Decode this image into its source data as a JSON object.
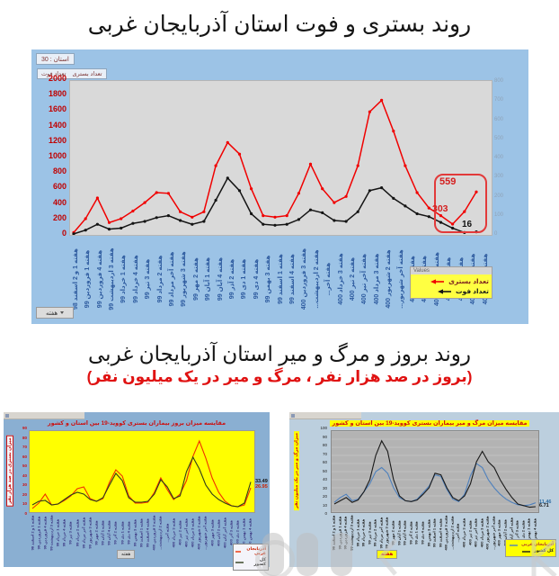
{
  "page": {
    "title_top": "روند بستری و فوت استان آذربایجان غربی",
    "title_bottom": "روند بروز و مرگ و میر استان آذربایجان غربی",
    "subtitle_bottom": "(بروز در صد هزار نفر ، مرگ و میر در یک میلیون نفر)"
  },
  "top_chart": {
    "controls": {
      "province": "استان : 30",
      "series_button_1": "تعداد بستری",
      "series_button_2": "تعداد فوت",
      "week": "هفته"
    },
    "legend_header": "Values",
    "annotations": {
      "latest_hospitalized": "559",
      "previous_hospitalized": "303",
      "latest_deaths": "16"
    }
  },
  "chart_data": [
    {
      "type": "line",
      "title": "روند بستری و فوت استان آذربایجان غربی",
      "legend_position": "bottom-right",
      "grid": false,
      "categories": [
        "هفته 1 و 2 اسفند 98",
        "هفته 1 فروردین 99",
        "هفته 4 فروردین 99",
        "هفته 3 اردیبهشت 99",
        "هفته 1 خرداد 99",
        "هفته 4 خرداد 99",
        "هفته 3 تیر 99",
        "هفته 2 مرداد 99",
        "هفته آخر مرداد 99",
        "هفته 3 شهریور 99",
        "هفته 2 مهر 99",
        "هفته 1 آبان 99",
        "هفته 4 آبان 99",
        "هفته 2 آذر 99",
        "هفته 1 دی 99",
        "هفته 4 دی 99",
        "هفته 3 بهمن 99",
        "هفته 1 اسفند 99",
        "هفته 4 اسفند 99",
        "هفته 3 فروردین 400",
        "هفته 2 اردیبهشت...",
        "هفته آخر...",
        "هفته 3 خرداد 400",
        "هفته 2 تیر 400",
        "هفته آخر تیر 400",
        "هفته 3 مرداد 400",
        "هفته 2 شهریور 400",
        "هفته آخر شهریور...",
        "هفته 3 مهر 400",
        "هفته 2 آبان 400",
        "هفته آخر آبان 400",
        "هفته 3 آذر 400",
        "هفته 2 دی 400",
        "هفته 1 بهمن 400",
        "هفته 4 بهمن 400"
      ],
      "y_left": {
        "min": 0,
        "max": 2000,
        "ticks": [
          2000,
          1800,
          1600,
          1400,
          1200,
          1000,
          800,
          600,
          400,
          200,
          0
        ]
      },
      "y_right": {
        "min": 0,
        "max": 800,
        "ticks": [
          800,
          700,
          600,
          500,
          400,
          300,
          200,
          100,
          0
        ]
      },
      "series": [
        {
          "name": "تعداد بستری",
          "axis": "left",
          "color": "#f00000",
          "values": [
            30,
            210,
            480,
            160,
            210,
            310,
            420,
            550,
            540,
            300,
            230,
            300,
            900,
            1200,
            1050,
            600,
            250,
            230,
            250,
            540,
            920,
            600,
            420,
            500,
            900,
            1600,
            1750,
            1350,
            900,
            550,
            350,
            250,
            140,
            303,
            559
          ]
        },
        {
          "name": "تعداد فوت",
          "axis": "right",
          "color": "#141414",
          "values": [
            5,
            25,
            55,
            30,
            35,
            60,
            70,
            90,
            100,
            75,
            55,
            70,
            180,
            295,
            230,
            110,
            55,
            50,
            55,
            80,
            130,
            115,
            75,
            70,
            120,
            230,
            245,
            190,
            150,
            110,
            95,
            65,
            35,
            12,
            16
          ]
        }
      ]
    },
    {
      "type": "line",
      "title": "مقایسه میزان بروز بیماران بستری کووید-19 بین استان و کشور",
      "ylabel": "میزان بستری در صد هزار نفر",
      "xlabel": "هفته",
      "grid": false,
      "categories": [
        "هفته 1 و 2 اسفند 98",
        "هفته 1 فروردین 99",
        "هفته 4 فروردین 99",
        "هفته 3 اردیبهشت 99",
        "هفته 1 خرداد 99",
        "هفته 4 خرداد 99",
        "هفته 3 تیر 99",
        "هفته 2 مرداد 99",
        "هفته آخر مرداد 99",
        "هفته 3 شهریور 99",
        "هفته 2 مهر 99",
        "هفته 1 آبان 99",
        "هفته 4 آبان 99",
        "هفته 2 آذر 99",
        "هفته 1 دی 99",
        "هفته 4 دی 99",
        "هفته 3 بهمن 99",
        "هفته 1 اسفند 99",
        "هفته 4 اسفند 99",
        "هفته 3 فروردین 400",
        "هفته 2 اردیبهشت...",
        "هفته آخر...",
        "هفته 3 خرداد 400",
        "هفته 2 تیر 400",
        "هفته آخر تیر 400",
        "هفته 3 مرداد 400",
        "هفته 2 شهریور 400",
        "هفته آخر شهریور...",
        "هفته 3 مهر 400",
        "هفته 2 آبان 400",
        "هفته آخر آبان 400",
        "هفته 3 آذر 400",
        "هفته 2 دی 400",
        "هفته 1 بهمن 400",
        "هفته 4 بهمن 400"
      ],
      "y": {
        "min": 0,
        "max": 90,
        "ticks": [
          90,
          80,
          70,
          60,
          50,
          40,
          30,
          20,
          10,
          0
        ]
      },
      "series": [
        {
          "name": "آذربایجان غربی",
          "color": "#f03000",
          "end_label": "26.95",
          "end_color": "#cc2200",
          "values": [
            4,
            10,
            20,
            8,
            9,
            13,
            18,
            26,
            28,
            15,
            12,
            15,
            33,
            47,
            40,
            18,
            10,
            10,
            11,
            22,
            38,
            25,
            14,
            20,
            35,
            62,
            79,
            60,
            38,
            22,
            12,
            7,
            6,
            8,
            26.95
          ]
        },
        {
          "name": "کل کشور",
          "color": "#2f3e1a",
          "end_label": "33.49",
          "end_color": "#111111",
          "values": [
            8,
            12,
            13,
            8,
            9,
            14,
            19,
            22,
            20,
            14,
            12,
            16,
            30,
            43,
            35,
            16,
            11,
            11,
            12,
            20,
            36,
            28,
            15,
            18,
            45,
            61,
            48,
            30,
            20,
            14,
            10,
            7,
            6,
            10,
            33.49
          ]
        }
      ]
    },
    {
      "type": "line",
      "title": "مقایسه میزان مرگ و میر بیماران بستری کووید-19 بین استان و کشور",
      "ylabel": "میزان مرگ و میر در یک میلیون نفر",
      "xlabel": "هفته",
      "grid": true,
      "categories": [
        "هفته 1 و 2 اسفند 98",
        "هفته 1 فروردین 99",
        "هفته 4 فروردین 99",
        "هفته 3 اردیبهشت 99",
        "هفته 1 خرداد 99",
        "هفته 4 خرداد 99",
        "هفته 3 تیر 99",
        "هفته 2 مرداد 99",
        "هفته آخر مرداد 99",
        "هفته 3 شهریور 99",
        "هفته 2 مهر 99",
        "هفته 1 آبان 99",
        "هفته 4 آبان 99",
        "هفته 2 آذر 99",
        "هفته 1 دی 99",
        "هفته 4 دی 99",
        "هفته 3 بهمن 99",
        "هفته 1 اسفند 99",
        "هفته 4 اسفند 99",
        "هفته 3 فروردین 400",
        "هفته 2 اردیبهشت...",
        "هفته آخر...",
        "هفته 3 خرداد 400",
        "هفته 2 تیر 400",
        "هفته آخر تیر 400",
        "هفته 3 مرداد 400",
        "هفته 2 شهریور 400",
        "هفته آخر شهریور...",
        "هفته 3 مهر 400",
        "هفته 2 آبان 400",
        "هفته آخر آبان 400",
        "هفته 3 آذر 400",
        "هفته 2 دی 400",
        "هفته 1 بهمن 400",
        "هفته 4 بهمن 400"
      ],
      "y": {
        "min": 0,
        "max": 100,
        "ticks": [
          100,
          90,
          80,
          70,
          60,
          50,
          40,
          30,
          20,
          10,
          0
        ]
      },
      "series": [
        {
          "name": "آذربایجان غربی",
          "color": "#4f81bd",
          "end_label": "11.46",
          "end_color": "#2e6da4",
          "values": [
            12,
            18,
            22,
            14,
            16,
            25,
            35,
            50,
            55,
            48,
            30,
            18,
            14,
            13,
            16,
            24,
            32,
            46,
            44,
            28,
            16,
            13,
            22,
            45,
            60,
            55,
            40,
            30,
            22,
            16,
            12,
            9,
            8,
            9,
            11.46
          ]
        },
        {
          "name": "کل کشور",
          "color": "#1a1a1a",
          "end_label": "6.71",
          "end_color": "#111111",
          "values": [
            10,
            14,
            18,
            12,
            15,
            25,
            40,
            70,
            88,
            75,
            40,
            20,
            14,
            13,
            15,
            22,
            30,
            48,
            46,
            30,
            18,
            14,
            20,
            35,
            62,
            75,
            62,
            55,
            40,
            28,
            18,
            10,
            8,
            6,
            6.71
          ]
        }
      ]
    }
  ]
}
